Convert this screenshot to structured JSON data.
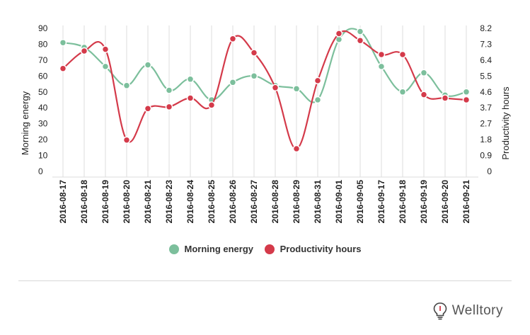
{
  "chart_data": {
    "type": "line",
    "x": [
      "2016-08-17",
      "2016-08-18",
      "2016-08-19",
      "2016-08-20",
      "2016-08-21",
      "2016-08-23",
      "2016-08-24",
      "2016-08-25",
      "2016-08-26",
      "2016-08-27",
      "2016-08-28",
      "2016-08-29",
      "2016-08-31",
      "2016-09-01",
      "2016-09-05",
      "2016-09-17",
      "2016-09-18",
      "2016-09-19",
      "2016-09-20",
      "2016-09-21"
    ],
    "y_left_label": "Morning energy",
    "y_right_label": "Productivity hours",
    "y_left_ticks": [
      "90",
      "80",
      "70",
      "60",
      "50",
      "40",
      "30",
      "20",
      "10",
      "0"
    ],
    "y_right_ticks": [
      "8.2",
      "7.3",
      "6.4",
      "5.5",
      "4.6",
      "3.7",
      "2.7",
      "1.8",
      "0.9",
      "0"
    ],
    "y_left_range": [
      0,
      90
    ],
    "y_right_range": [
      0,
      8.2
    ],
    "grid": "vertical",
    "series": [
      {
        "name": "Morning energy",
        "axis": "left",
        "color": "#7cbf9c",
        "values": [
          81,
          78,
          66,
          54,
          67,
          51,
          58,
          45,
          56,
          60,
          54,
          52,
          45,
          83,
          88,
          66,
          50,
          62,
          48,
          50
        ]
      },
      {
        "name": "Productivity hours",
        "axis": "right",
        "color": "#d43a4a",
        "values": [
          5.9,
          6.9,
          7.0,
          1.8,
          3.6,
          3.7,
          4.2,
          3.8,
          7.6,
          6.8,
          4.8,
          1.3,
          5.2,
          7.9,
          7.5,
          6.7,
          6.7,
          4.4,
          4.2,
          4.1
        ]
      }
    ],
    "legend_position": "bottom-center"
  },
  "legend": {
    "items": [
      {
        "label": "Morning energy",
        "color": "#7cbf9c"
      },
      {
        "label": "Productivity hours",
        "color": "#d43a4a"
      }
    ]
  },
  "brand": {
    "name": "Welltory",
    "icon": "lightbulb-icon"
  }
}
